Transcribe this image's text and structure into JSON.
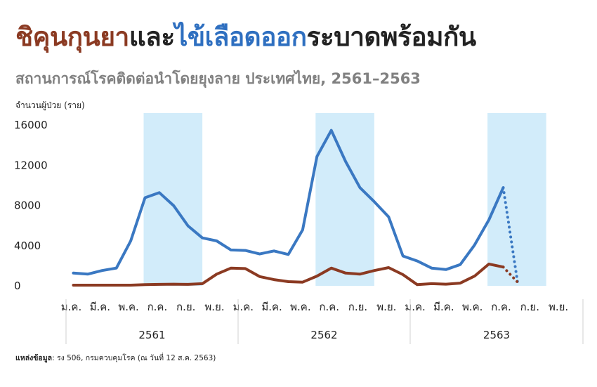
{
  "title": {
    "part1": "ชิคุนกุนยา",
    "part2": "และ",
    "part3": "ไข้เลือดออก",
    "part4": "ระบาดพร้อมกัน"
  },
  "subtitle": "สถานการณ์โรคติดต่อนำโดยยุงลาย ประเทศไทย, 2561–2563",
  "ylabel": "จำนวนผู้ป่วย (ราย)",
  "source": {
    "label": "แหล่งข้อมูล",
    "text": ": รง 506, กรมควบคุมโรค (ณ วันที่ 12 ส.ค. 2563)"
  },
  "colors": {
    "dengue": "#3A78C2",
    "chikungunya": "#8B3A22",
    "season_band": "#D2ECFA",
    "title_chik": "#8B3A22",
    "title_dengue": "#2E6FC0"
  },
  "chart_data": {
    "type": "line",
    "title": "",
    "ylabel": "จำนวนผู้ป่วย (ราย)",
    "ylim": [
      0,
      16000
    ],
    "yticks": [
      0,
      4000,
      8000,
      12000,
      16000
    ],
    "x_tick_labels": [
      "ม.ค.",
      "มี.ค.",
      "พ.ค.",
      "ก.ค.",
      "ก.ย.",
      "พ.ย.",
      "ม.ค.",
      "มี.ค.",
      "พ.ค.",
      "ก.ค.",
      "ก.ย.",
      "พ.ย.",
      "ม.ค.",
      "มี.ค.",
      "พ.ค.",
      "ก.ค.",
      "ก.ย.",
      "พ.ย."
    ],
    "years": [
      "2561",
      "2562",
      "2563"
    ],
    "shaded_months": [
      [
        5,
        9
      ],
      [
        17,
        21
      ],
      [
        29,
        33
      ]
    ],
    "grid": false,
    "series": [
      {
        "key": "dengue",
        "values": [
          1200,
          1100,
          1450,
          1700,
          4400,
          8700,
          9200,
          7900,
          5900,
          4700,
          4400,
          3500,
          3450,
          3100,
          3400,
          3050,
          5500,
          12800,
          15400,
          12300,
          9700,
          8300,
          6800,
          2900,
          2400,
          1700,
          1550,
          2050,
          4000,
          6500,
          9700
        ],
        "projected": [
          9700,
          300
        ]
      },
      {
        "key": "chikungunya",
        "values": [
          0,
          0,
          0,
          0,
          0,
          50,
          80,
          100,
          80,
          150,
          1100,
          1700,
          1650,
          850,
          550,
          350,
          300,
          900,
          1700,
          1200,
          1100,
          1450,
          1750,
          1050,
          50,
          150,
          100,
          200,
          900,
          2100,
          1800
        ],
        "projected": [
          1800,
          300
        ]
      }
    ]
  }
}
